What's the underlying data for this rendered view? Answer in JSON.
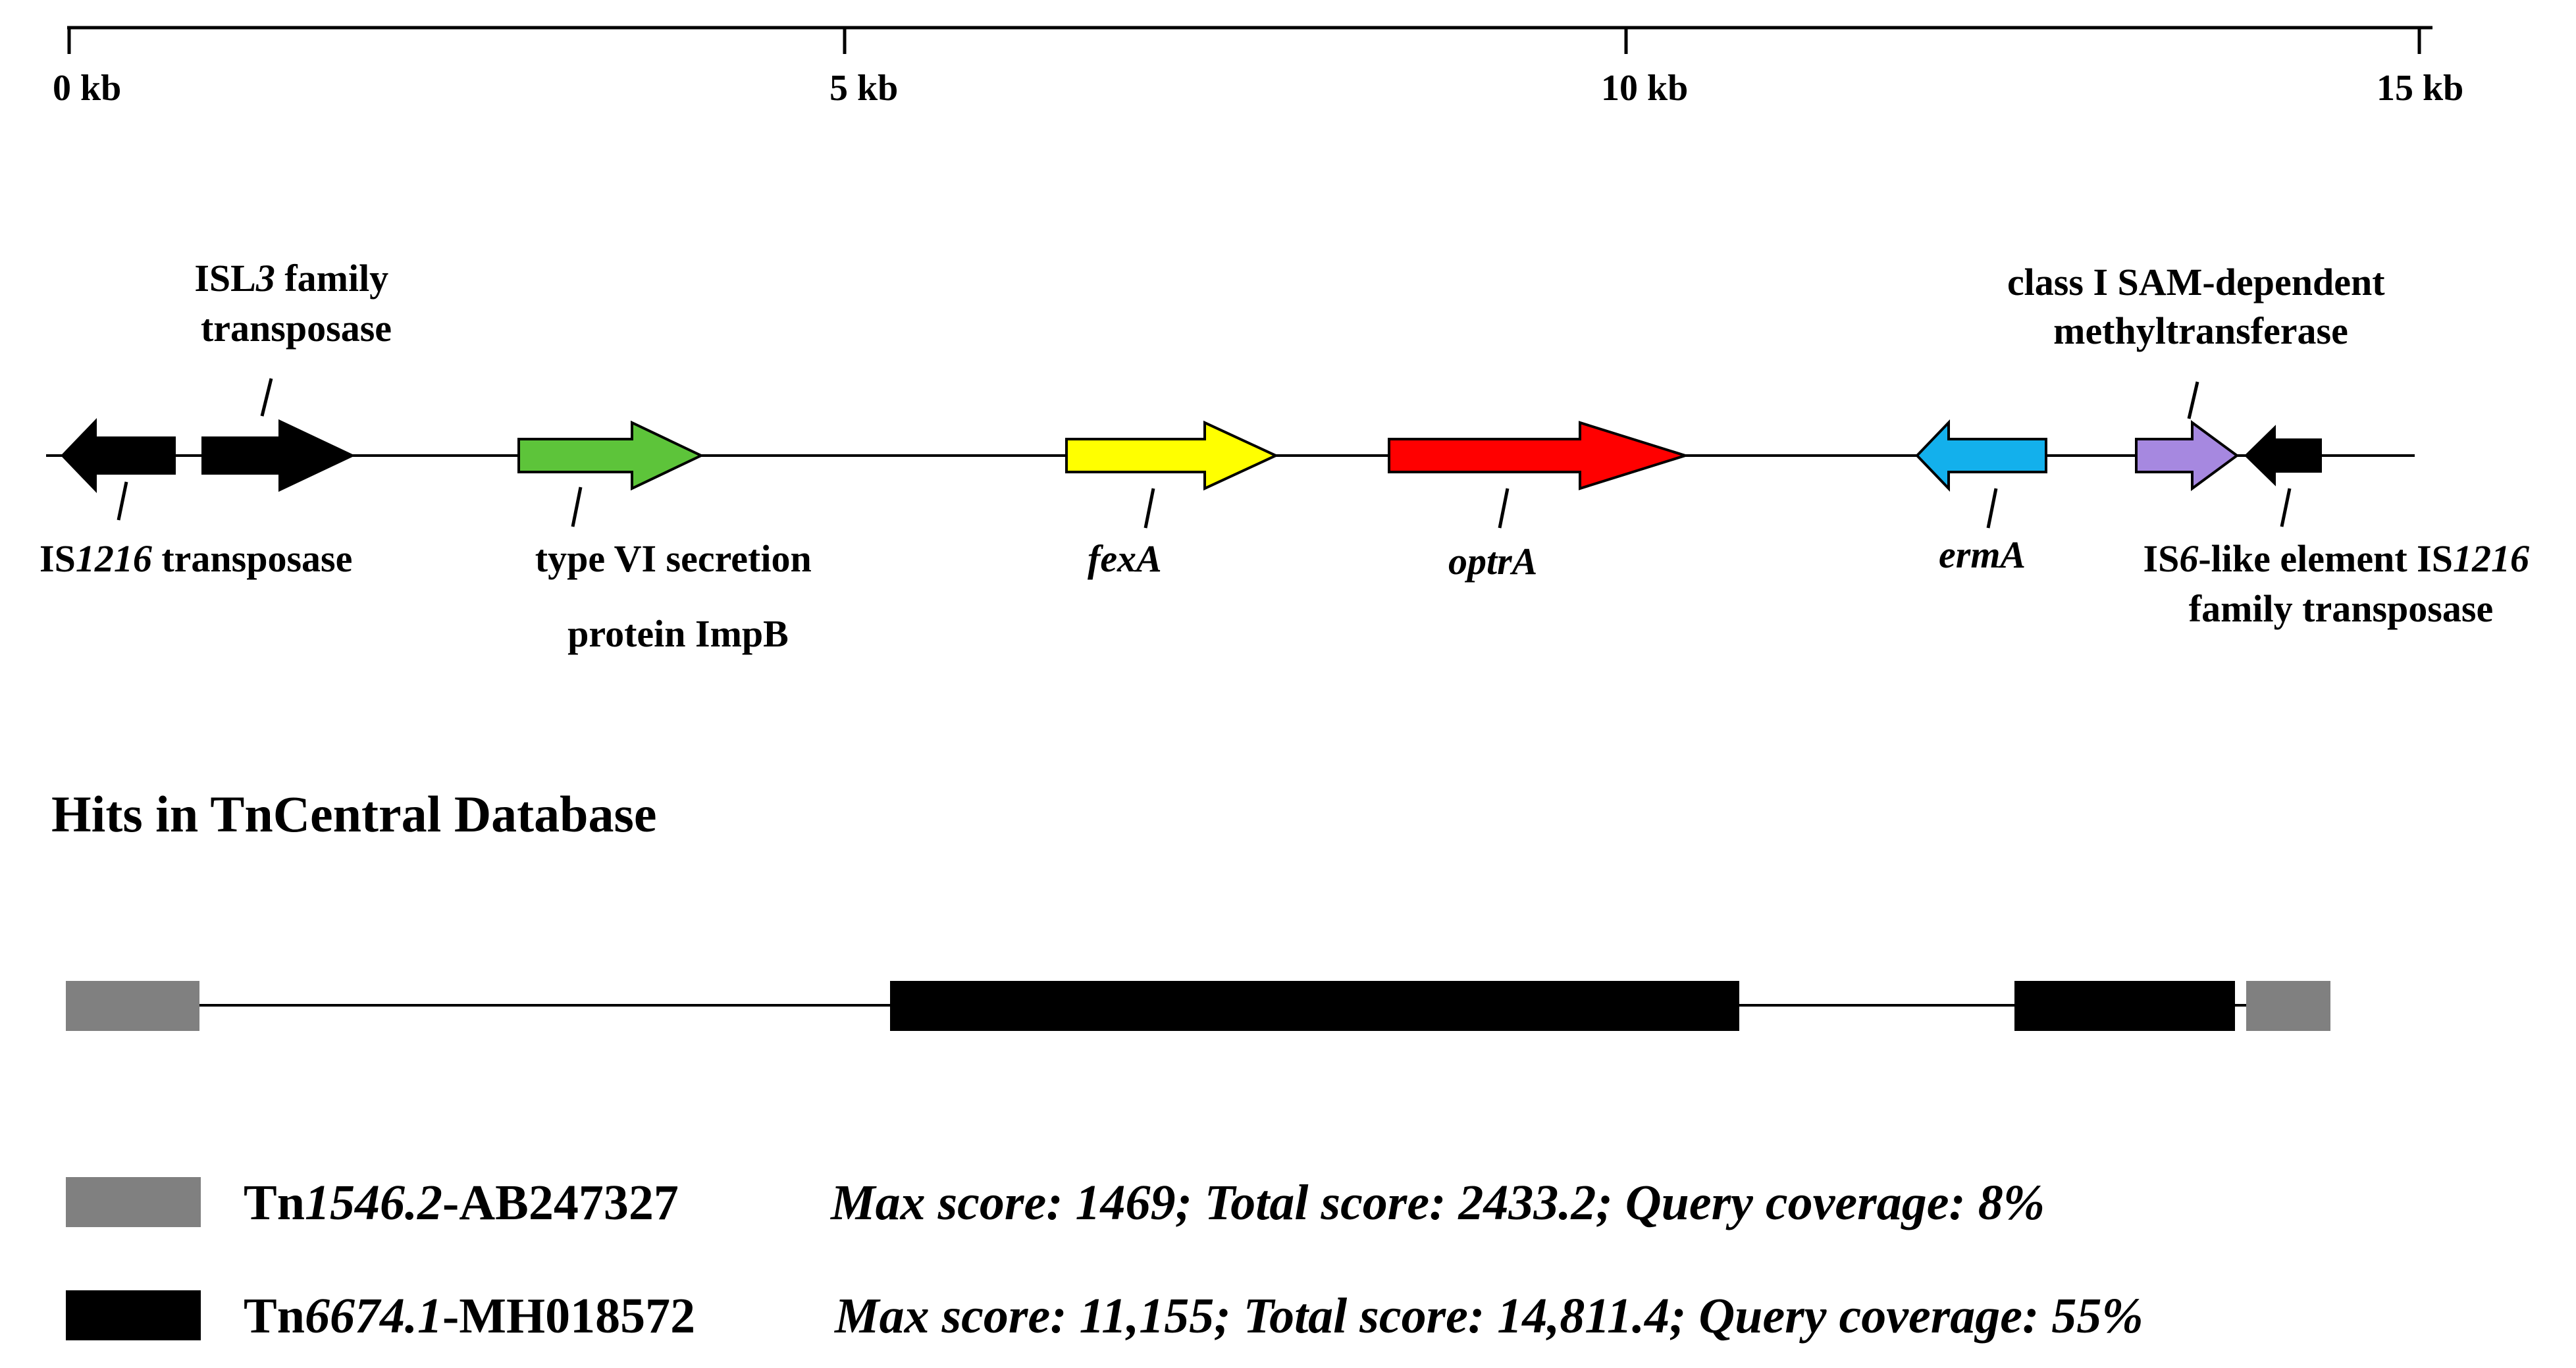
{
  "scale": {
    "tick_labels": [
      "0 kb",
      "5 kb",
      "10 kb",
      "15 kb"
    ]
  },
  "genes": [
    {
      "id": "is1216-left",
      "color": "#000000",
      "label_lines": [
        [
          "IS",
          "1216",
          " transposase"
        ]
      ]
    },
    {
      "id": "isl3",
      "color": "#000000",
      "label_lines": [
        [
          "ISL",
          "3",
          " family"
        ],
        [
          "transposase"
        ]
      ]
    },
    {
      "id": "impb",
      "color": "#5dc43a",
      "label_lines": [
        [
          "type VI secretion"
        ],
        [
          "protein ImpB"
        ]
      ]
    },
    {
      "id": "fexa",
      "color": "#ffff00",
      "label_lines": [
        [
          "",
          "fexA",
          ""
        ]
      ]
    },
    {
      "id": "optra",
      "color": "#ff0000",
      "label_lines": [
        [
          "",
          "optrA",
          ""
        ]
      ]
    },
    {
      "id": "erma",
      "color": "#13b0ec",
      "label_lines": [
        [
          "",
          "ermA",
          ""
        ]
      ]
    },
    {
      "id": "methyltransferase",
      "color": "#a688e0",
      "label_lines": [
        [
          "class I SAM-dependent"
        ],
        [
          "methyltransferase"
        ]
      ]
    },
    {
      "id": "is1216-right",
      "color": "#000000",
      "label_lines": [
        [
          "IS",
          "6",
          "-like element IS",
          "1216"
        ],
        [
          "family transposase"
        ]
      ]
    }
  ],
  "hits_title": "Hits in TnCentral Database",
  "hits": {
    "tn1546_color": "#808080",
    "tn6674_color": "#000000"
  },
  "legend": [
    {
      "name_prefix": "Tn",
      "name_italic": "1546.2",
      "name_suffix": "-AB247327",
      "stats": "Max score: 1469; Total score: 2433.2; Query coverage: 8%",
      "color": "#808080"
    },
    {
      "name_prefix": "Tn",
      "name_italic": "6674.1",
      "name_suffix": "-MH018572",
      "stats": "Max score: 11,155; Total score: 14,811.4; Query coverage: 55%",
      "color": "#000000"
    }
  ]
}
